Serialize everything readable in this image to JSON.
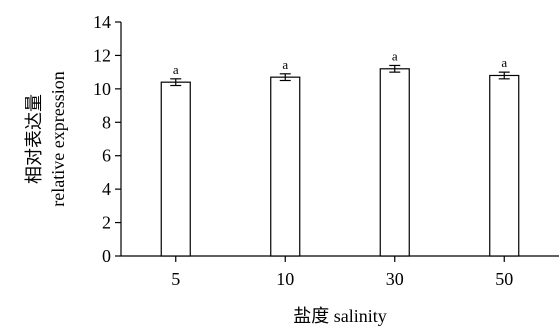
{
  "chart_data": {
    "type": "bar",
    "categories": [
      "5",
      "10",
      "30",
      "50"
    ],
    "values": [
      10.4,
      10.7,
      11.2,
      10.8
    ],
    "errors": [
      0.2,
      0.2,
      0.2,
      0.2
    ],
    "significance_labels": [
      "a",
      "a",
      "a",
      "a"
    ],
    "ylabel_cn": "相对表达量",
    "ylabel_en": "relative expression",
    "xlabel": "盐度 salinity",
    "ylim": [
      0,
      14
    ],
    "yticks": [
      "0",
      "2",
      "4",
      "6",
      "8",
      "10",
      "12",
      "14"
    ],
    "grid": false,
    "bar_fill": "#ffffff",
    "bar_stroke": "#000000"
  }
}
